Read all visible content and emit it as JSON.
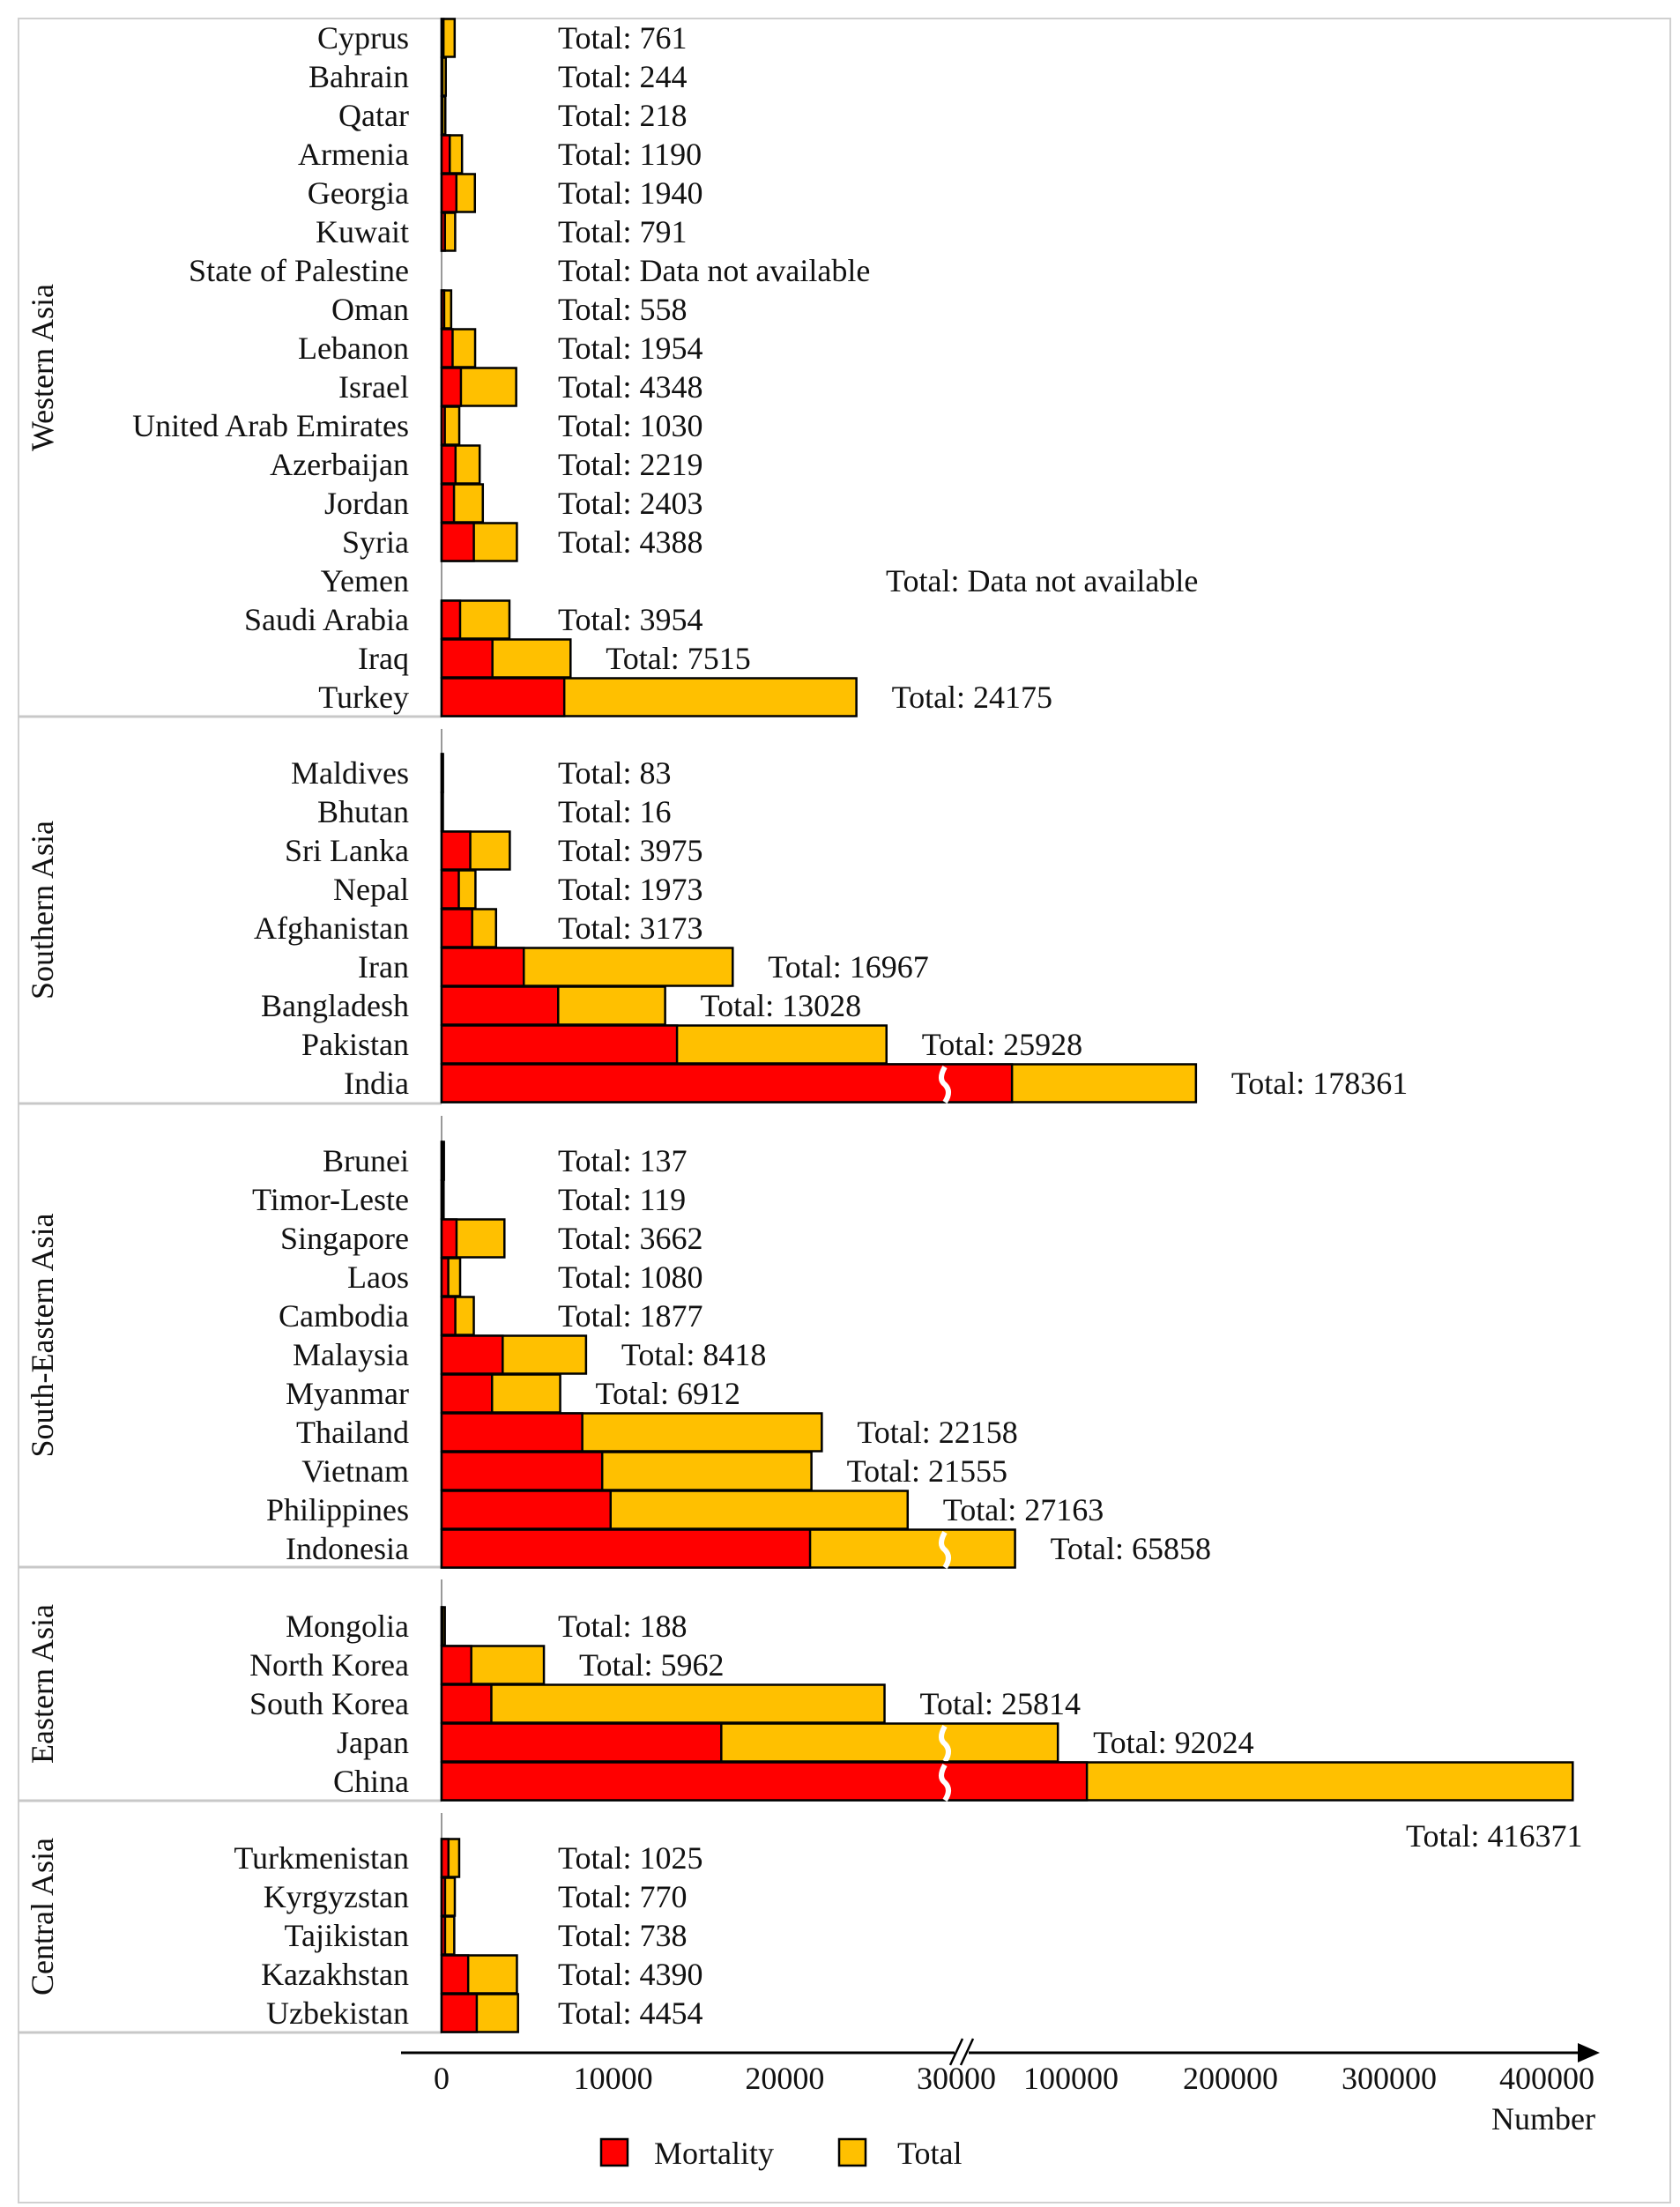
{
  "chart_data": {
    "type": "bar",
    "orientation": "horizontal",
    "stacked": true,
    "xlabel": "Number",
    "x_ticks": [
      "0",
      "10000",
      "20000",
      "30000",
      "100000",
      "200000",
      "300000",
      "400000"
    ],
    "x_scale": "broken axis between 30000 and 100000",
    "colors": {
      "Mortality": "#ff0000",
      "Total": "#ffc000"
    },
    "legend": {
      "placement": "bottom",
      "entries": [
        "Mortality",
        "Total"
      ]
    },
    "groups": [
      {
        "name": "Western Asia",
        "rows": [
          {
            "country": "Cyprus",
            "mortality": 110,
            "total": 761,
            "label": "Total: 761"
          },
          {
            "country": "Bahrain",
            "mortality": 40,
            "total": 244,
            "label": "Total: 244"
          },
          {
            "country": "Qatar",
            "mortality": 40,
            "total": 218,
            "label": "Total: 218"
          },
          {
            "country": "Armenia",
            "mortality": 476,
            "total": 1190,
            "label": "Total: 1190"
          },
          {
            "country": "Georgia",
            "mortality": 862,
            "total": 1940,
            "label": "Total: 1940"
          },
          {
            "country": "Kuwait",
            "mortality": 193,
            "total": 791,
            "label": "Total: 791"
          },
          {
            "country": "State of Palestine",
            "mortality": null,
            "total": null,
            "label": "Total: Data not available"
          },
          {
            "country": "Oman",
            "mortality": 150,
            "total": 558,
            "label": "Total: 558"
          },
          {
            "country": "Lebanon",
            "mortality": 640,
            "total": 1954,
            "label": "Total: 1954"
          },
          {
            "country": "Israel",
            "mortality": 1127,
            "total": 4348,
            "label": "Total: 4348"
          },
          {
            "country": "United Arab Emirates",
            "mortality": 187,
            "total": 1030,
            "label": "Total: 1030"
          },
          {
            "country": "Azerbaijan",
            "mortality": 812,
            "total": 2219,
            "label": "Total: 2219"
          },
          {
            "country": "Jordan",
            "mortality": 723,
            "total": 2403,
            "label": "Total: 2403"
          },
          {
            "country": "Syria",
            "mortality": 1880,
            "total": 4388,
            "label": "Total: 4388"
          },
          {
            "country": "Yemen",
            "mortality": null,
            "total": null,
            "label": "Total: Data not available"
          },
          {
            "country": "Saudi Arabia",
            "mortality": 1078,
            "total": 3954,
            "label": "Total: 3954"
          },
          {
            "country": "Iraq",
            "mortality": 2963,
            "total": 7515,
            "label": "Total: 7515"
          },
          {
            "country": "Turkey",
            "mortality": 7150,
            "total": 24175,
            "label": "Total: 24175"
          }
        ]
      },
      {
        "name": "Southern Asia",
        "rows": [
          {
            "country": "Maldives",
            "mortality": 10,
            "total": 83,
            "label": "Total: 83"
          },
          {
            "country": "Bhutan",
            "mortality": 2,
            "total": 16,
            "label": "Total: 16"
          },
          {
            "country": "Sri Lanka",
            "mortality": 1672,
            "total": 3975,
            "label": "Total: 3975"
          },
          {
            "country": "Nepal",
            "mortality": 1003,
            "total": 1973,
            "label": "Total: 1973"
          },
          {
            "country": "Afghanistan",
            "mortality": 1781,
            "total": 3173,
            "label": "Total: 3173"
          },
          {
            "country": "Iran",
            "mortality": 4790,
            "total": 16967,
            "label": "Total: 16967"
          },
          {
            "country": "Bangladesh",
            "mortality": 6795,
            "total": 13028,
            "label": "Total: 13028"
          },
          {
            "country": "Pakistan",
            "mortality": 13720,
            "total": 25928,
            "label": "Total: 25928"
          },
          {
            "country": "India",
            "mortality": 64000,
            "total": 178361,
            "label": "Total: 178361"
          }
        ]
      },
      {
        "name": "South-Eastern Asia",
        "rows": [
          {
            "country": "Brunei",
            "mortality": 10,
            "total": 137,
            "label": "Total: 137"
          },
          {
            "country": "Timor-Leste",
            "mortality": 10,
            "total": 119,
            "label": "Total: 119"
          },
          {
            "country": "Singapore",
            "mortality": 870,
            "total": 3662,
            "label": "Total: 3662"
          },
          {
            "country": "Laos",
            "mortality": 390,
            "total": 1080,
            "label": "Total: 1080"
          },
          {
            "country": "Cambodia",
            "mortality": 800,
            "total": 1877,
            "label": "Total: 1877"
          },
          {
            "country": "Malaysia",
            "mortality": 3560,
            "total": 8418,
            "label": "Total: 8418"
          },
          {
            "country": "Myanmar",
            "mortality": 2940,
            "total": 6912,
            "label": "Total: 6912"
          },
          {
            "country": "Thailand",
            "mortality": 8200,
            "total": 22158,
            "label": "Total: 22158"
          },
          {
            "country": "Vietnam",
            "mortality": 9360,
            "total": 21555,
            "label": "Total: 21555"
          },
          {
            "country": "Philippines",
            "mortality": 9850,
            "total": 27163,
            "label": "Total: 27163"
          },
          {
            "country": "Indonesia",
            "mortality": 21475,
            "total": 65858,
            "label": "Total: 65858"
          }
        ]
      },
      {
        "name": "Eastern Asia",
        "rows": [
          {
            "country": "Mongolia",
            "mortality": 50,
            "total": 188,
            "label": "Total: 188"
          },
          {
            "country": "North Korea",
            "mortality": 1730,
            "total": 5962,
            "label": "Total: 5962"
          },
          {
            "country": "South Korea",
            "mortality": 2900,
            "total": 25814,
            "label": "Total: 25814"
          },
          {
            "country": "Japan",
            "mortality": 16300,
            "total": 92024,
            "label": "Total: 92024"
          },
          {
            "country": "China",
            "mortality": 110000,
            "total": 416371,
            "label": "Total: 416371"
          }
        ]
      },
      {
        "name": "Central Asia",
        "rows": [
          {
            "country": "Turkmenistan",
            "mortality": 400,
            "total": 1025,
            "label": "Total: 1025"
          },
          {
            "country": "Kyrgyzstan",
            "mortality": 200,
            "total": 770,
            "label": "Total: 770"
          },
          {
            "country": "Tajikistan",
            "mortality": 200,
            "total": 738,
            "label": "Total: 738"
          },
          {
            "country": "Kazakhstan",
            "mortality": 1550,
            "total": 4390,
            "label": "Total: 4390"
          },
          {
            "country": "Uzbekistan",
            "mortality": 2050,
            "total": 4454,
            "label": "Total: 4454"
          }
        ]
      }
    ]
  }
}
